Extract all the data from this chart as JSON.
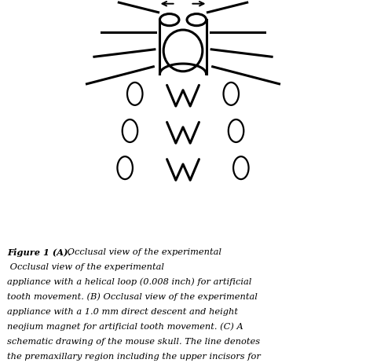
{
  "figsize": [
    4.66,
    4.62
  ],
  "dpi": 100,
  "bg_color": "#ffffff",
  "drawing_color": "#000000",
  "caption_bold": "Figure 1 (A).",
  "caption_rest": " Occlusal view of the experimental appliance with a helical loop (0.008 inch) for artificial tooth movement. (B) Occlusal view of the experimental appliance with a 1.0 mm direct descent and height neojium magnet for artificial tooth movement. (C) A schematic drawing of the mouse skull. The line denotes the premaxillary region including the upper incisors for preparation of the histological section.",
  "lw_thin": 1.6,
  "lw_thick": 2.2
}
